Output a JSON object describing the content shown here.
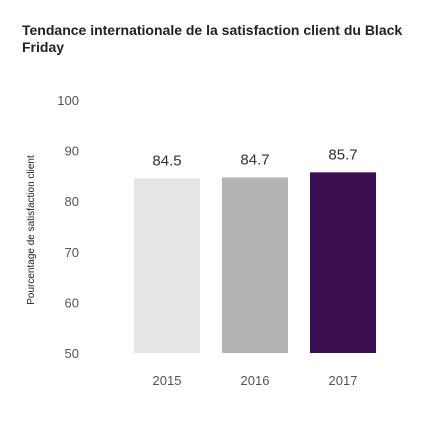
{
  "chart_data": {
    "type": "bar",
    "title": "Tendance internationale de la satisfaction client du Black Friday",
    "xlabel": "",
    "ylabel": "Pourcentage de satisfaction client",
    "categories": [
      "2015",
      "2016",
      "2017"
    ],
    "values": [
      84.5,
      84.7,
      85.7
    ],
    "value_labels": [
      "84.5",
      "84.7",
      "85.7"
    ],
    "ylim": [
      50,
      100
    ],
    "yticks": [
      50,
      60,
      70,
      80,
      90,
      100
    ],
    "grid": false,
    "colors": [
      "#e6e6e6",
      "#b3b3b3",
      "#3b0f4f"
    ]
  }
}
